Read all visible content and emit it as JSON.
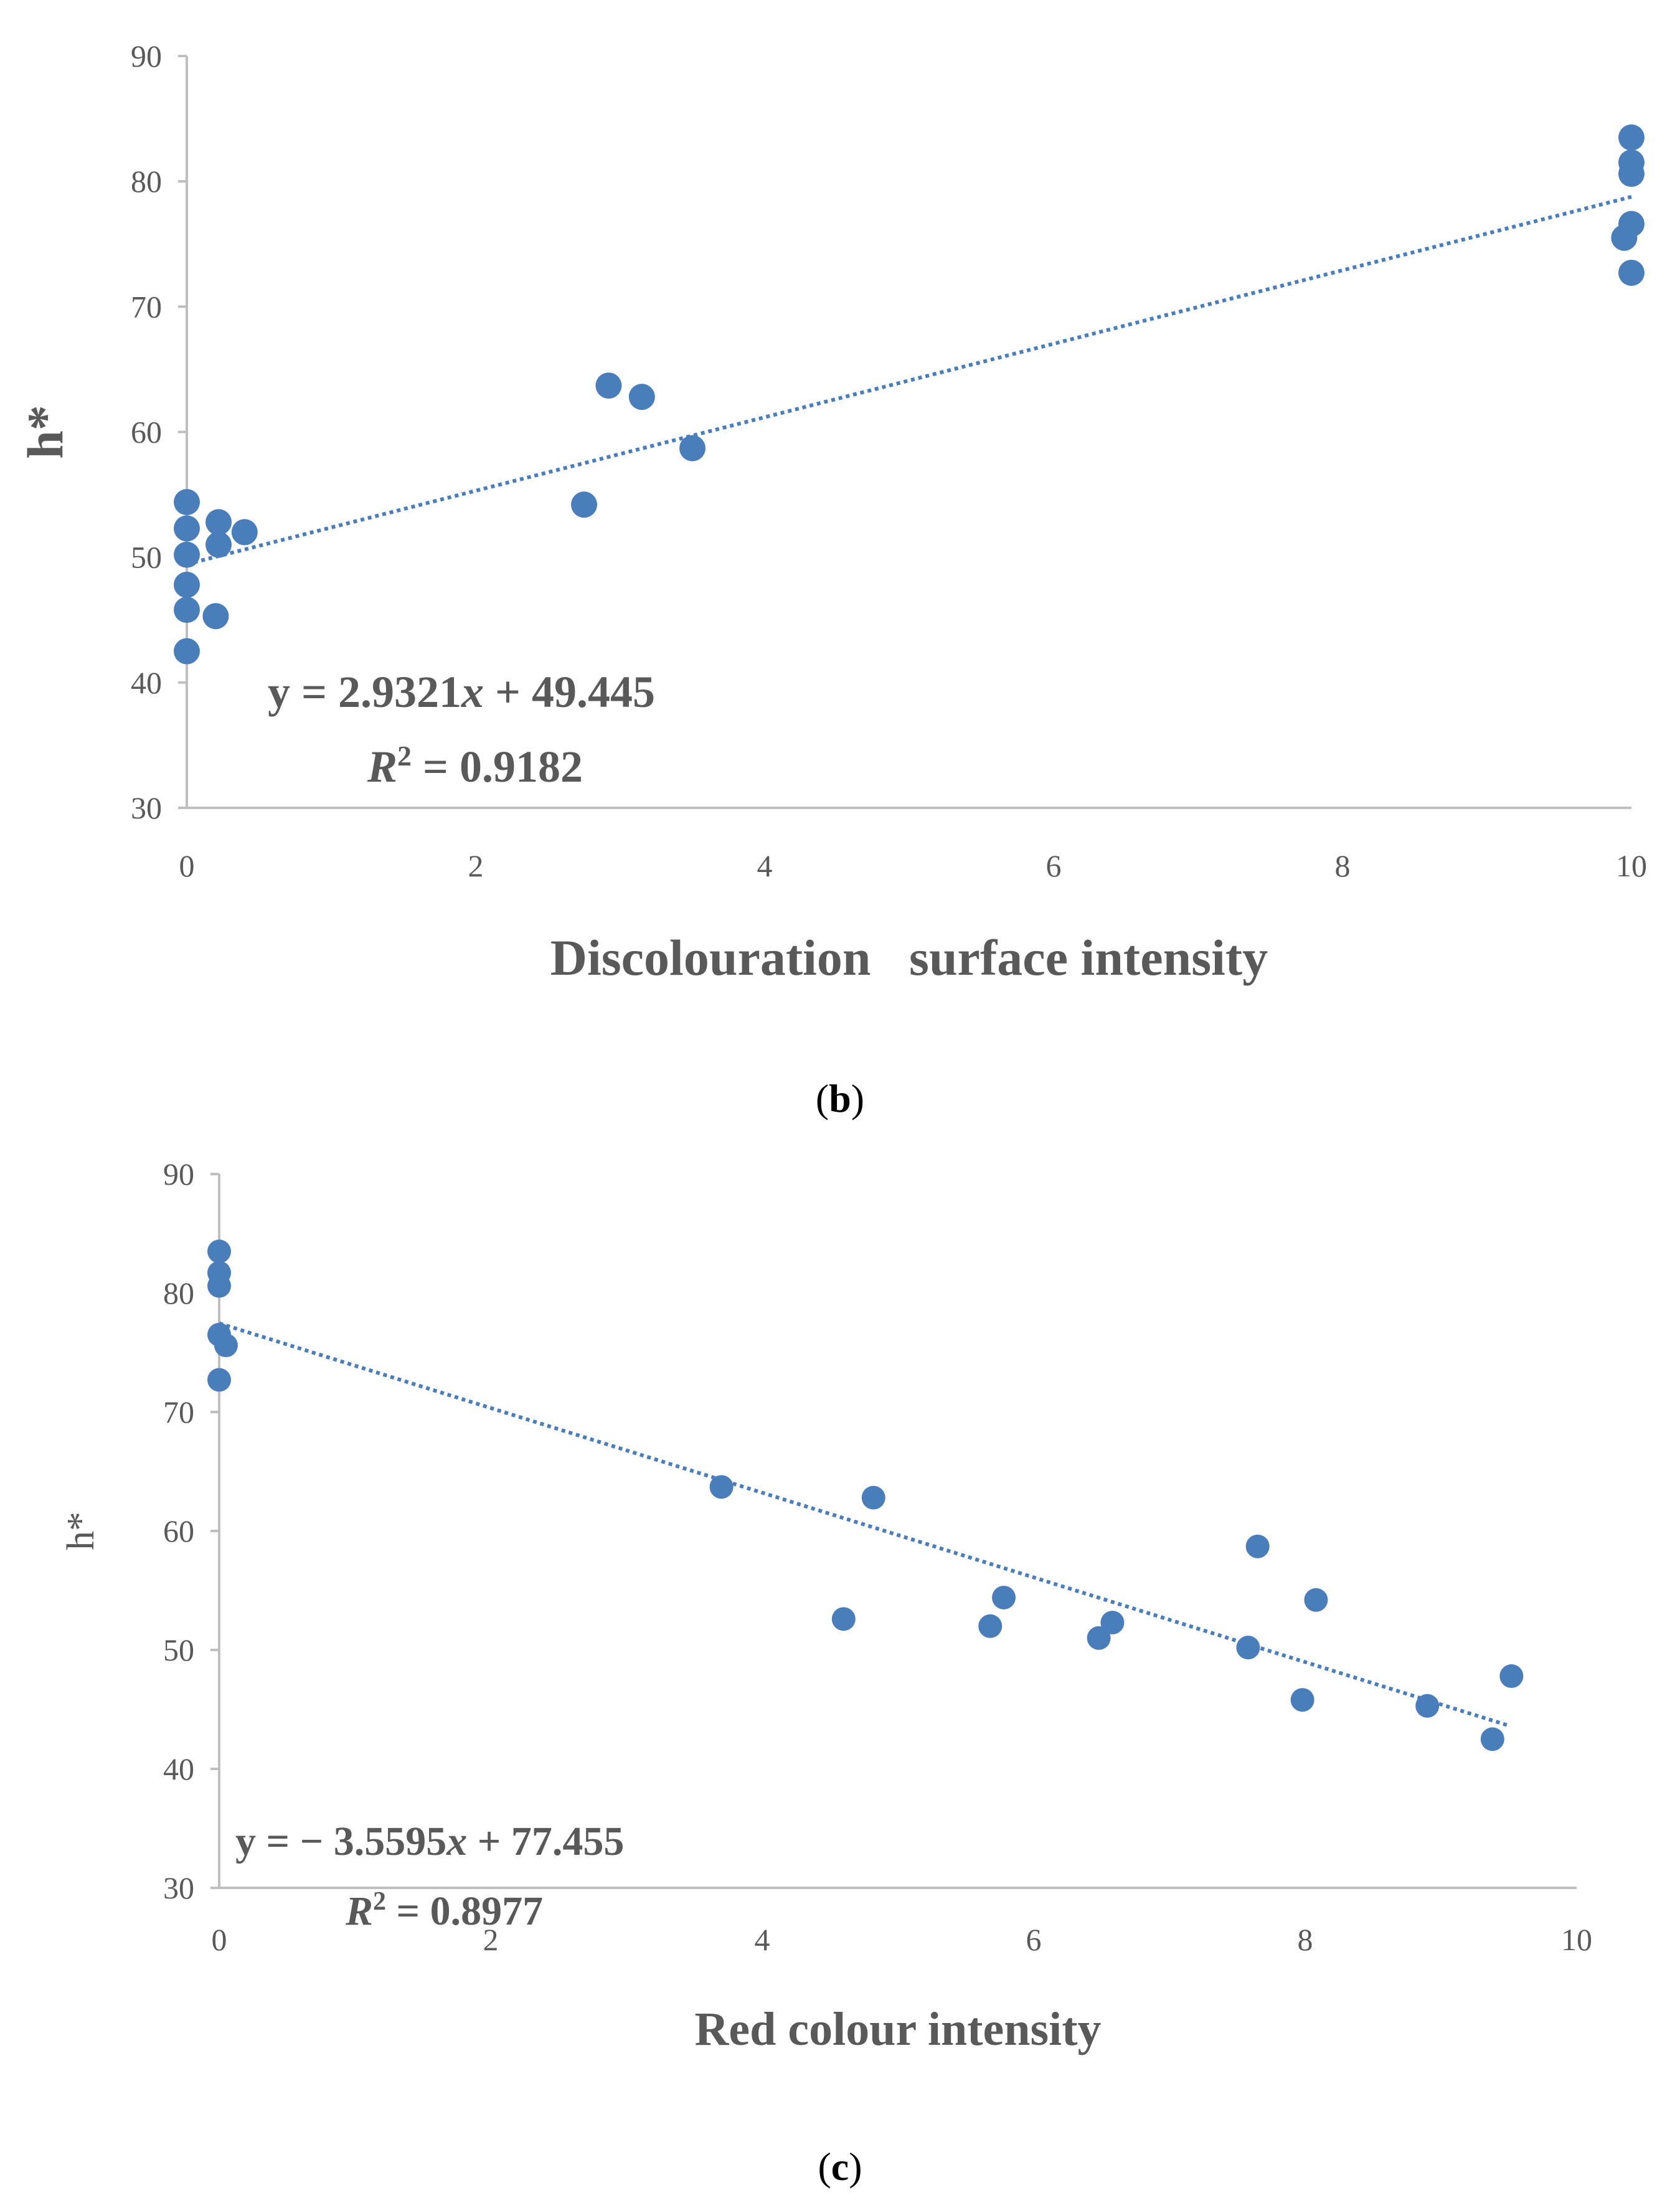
{
  "chart_data": [
    {
      "type": "scatter",
      "panel_label": "b",
      "xlabel": "Discolouration   surface intensity",
      "ylabel": "h*",
      "xlim": [
        0,
        10
      ],
      "ylim": [
        30,
        90
      ],
      "x_ticks": [
        "0",
        "2",
        "4",
        "6",
        "8",
        "10"
      ],
      "y_ticks": [
        "30",
        "40",
        "50",
        "60",
        "70",
        "80",
        "90"
      ],
      "series": [
        {
          "name": "h*",
          "color": "#4a7ebb",
          "points": [
            [
              0,
              42.5
            ],
            [
              0,
              45.8
            ],
            [
              0,
              47.8
            ],
            [
              0,
              50.2
            ],
            [
              0,
              52.3
            ],
            [
              0,
              54.4
            ],
            [
              0.2,
              45.3
            ],
            [
              0.22,
              51.0
            ],
            [
              0.22,
              52.8
            ],
            [
              0.4,
              52.0
            ],
            [
              2.75,
              54.2
            ],
            [
              2.92,
              63.7
            ],
            [
              3.15,
              62.8
            ],
            [
              3.5,
              58.7
            ],
            [
              9.95,
              75.5
            ],
            [
              10,
              72.7
            ],
            [
              10,
              76.6
            ],
            [
              10,
              80.6
            ],
            [
              10,
              81.5
            ],
            [
              10,
              83.5
            ]
          ]
        }
      ],
      "trendline": {
        "slope": 2.9321,
        "intercept": 49.445,
        "x_range": [
          0,
          10
        ],
        "color": "#4a7ebb"
      },
      "equation": {
        "lhs": "y = 2.9321",
        "var": "x",
        "rhs": " + 49.445"
      },
      "r2": {
        "label": "R",
        "sup": "2",
        "value": " = 0.9182"
      }
    },
    {
      "type": "scatter",
      "panel_label": "c",
      "xlabel": "Red colour intensity",
      "ylabel": "h*",
      "xlim": [
        0,
        10
      ],
      "ylim": [
        30,
        90
      ],
      "x_ticks": [
        "0",
        "2",
        "4",
        "6",
        "8",
        "10"
      ],
      "y_ticks": [
        "30",
        "40",
        "50",
        "60",
        "70",
        "80",
        "90"
      ],
      "series": [
        {
          "name": "h*",
          "color": "#4a7ebb",
          "points": [
            [
              0,
              83.5
            ],
            [
              0,
              81.7
            ],
            [
              0,
              80.6
            ],
            [
              0,
              76.5
            ],
            [
              0.05,
              75.6
            ],
            [
              0,
              72.7
            ],
            [
              3.7,
              63.7
            ],
            [
              4.6,
              52.6
            ],
            [
              4.82,
              62.8
            ],
            [
              5.68,
              52.0
            ],
            [
              5.78,
              54.4
            ],
            [
              6.48,
              51.0
            ],
            [
              6.58,
              52.3
            ],
            [
              7.58,
              50.2
            ],
            [
              7.65,
              58.7
            ],
            [
              7.98,
              45.8
            ],
            [
              8.08,
              54.2
            ],
            [
              8.9,
              45.3
            ],
            [
              9.38,
              42.5
            ],
            [
              9.52,
              47.8
            ]
          ]
        }
      ],
      "trendline": {
        "slope": -3.5595,
        "intercept": 77.455,
        "x_range": [
          0,
          9.5
        ],
        "color": "#4a7ebb"
      },
      "equation": {
        "lhs": "y = − 3.5595",
        "var": "x",
        "rhs": " + 77.455"
      },
      "r2": {
        "label": "R",
        "sup": "2",
        "value": " = 0.8977"
      }
    }
  ]
}
